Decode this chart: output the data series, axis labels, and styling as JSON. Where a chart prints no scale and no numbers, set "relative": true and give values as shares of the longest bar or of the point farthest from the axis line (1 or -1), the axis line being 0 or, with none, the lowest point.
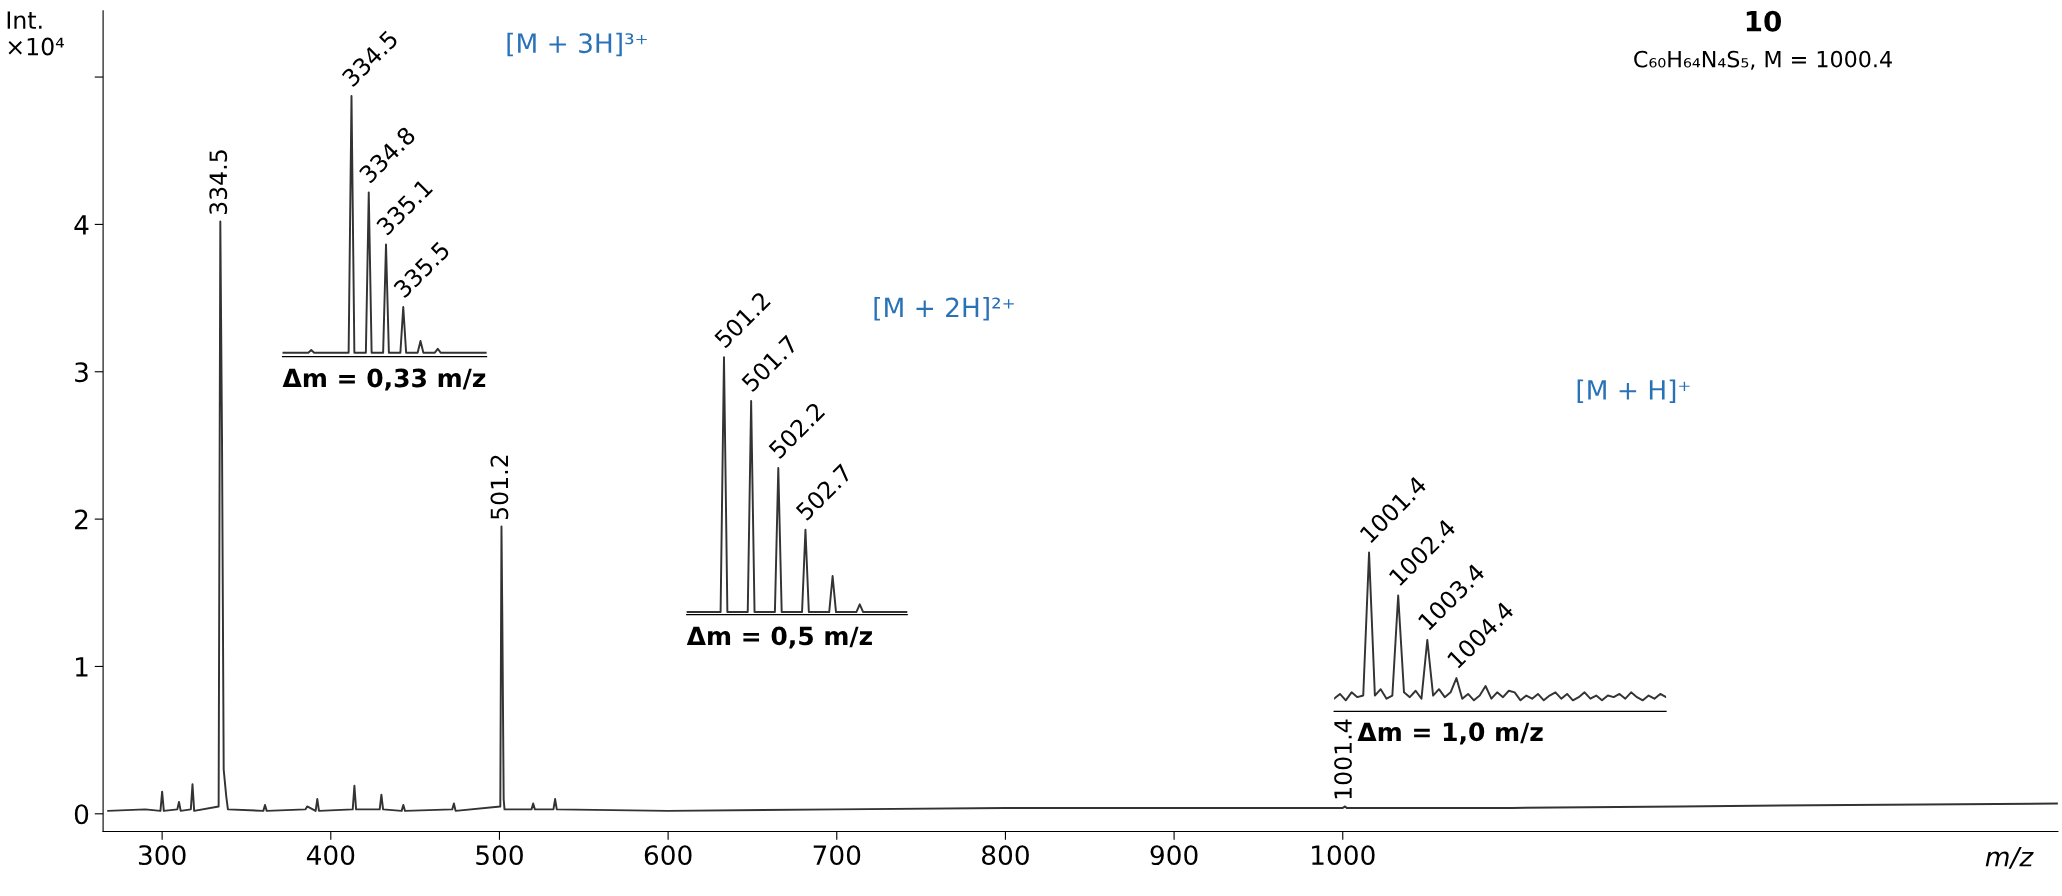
{
  "chart_data": [
    {
      "type": "line",
      "title": "10",
      "subtitle": "C₆₀H₆₄N₄S₅, M = 1000.4",
      "ylabel": "Int.\n×10⁴",
      "xlabel": "m/z",
      "xlim": [
        265,
        1424
      ],
      "ylim": [
        -0.12,
        5.45
      ],
      "xticks": [
        300,
        400,
        500,
        600,
        700,
        800,
        900,
        1000
      ],
      "yticks": [
        0,
        1,
        2,
        3,
        4,
        {
          "value": 5,
          "label": null
        }
      ],
      "series": [
        {
          "color": "#333333",
          "x": [
            268,
            290,
            299,
            300,
            301,
            309,
            310,
            311,
            317,
            318,
            319,
            333.5,
            334.5,
            335.5,
            336.5,
            338,
            339,
            360,
            361,
            362,
            385,
            386,
            391,
            392,
            393,
            413,
            414,
            415,
            429,
            430,
            431,
            442,
            443,
            444,
            472,
            473,
            474,
            500.5,
            501.2,
            501.7,
            502.5,
            503,
            519,
            520,
            521,
            532,
            533,
            534,
            600,
            700,
            800,
            850,
            1000,
            1001.4,
            1002.4,
            1100,
            1200,
            1300,
            1424
          ],
          "values": [
            0.02,
            0.03,
            0.02,
            0.15,
            0.02,
            0.03,
            0.08,
            0.02,
            0.03,
            0.2,
            0.02,
            0.05,
            4.02,
            2.55,
            0.3,
            0.12,
            0.03,
            0.02,
            0.06,
            0.02,
            0.03,
            0.05,
            0.02,
            0.1,
            0.02,
            0.03,
            0.19,
            0.03,
            0.03,
            0.13,
            0.03,
            0.02,
            0.06,
            0.02,
            0.03,
            0.07,
            0.02,
            0.05,
            1.95,
            1.32,
            0.1,
            0.03,
            0.03,
            0.07,
            0.03,
            0.03,
            0.1,
            0.03,
            0.02,
            0.03,
            0.04,
            0.04,
            0.04,
            0.05,
            0.04,
            0.04,
            0.05,
            0.06,
            0.07
          ]
        }
      ],
      "annotations": [
        {
          "text": "334.5",
          "x": 334.5,
          "y": 4.02
        },
        {
          "text": "501.2",
          "x": 501.2,
          "y": 1.95
        },
        {
          "text": "1001.4",
          "x": 1001.4,
          "y": 0.05
        },
        "[M + 3H]³⁺",
        "[M + 2H]²⁺",
        "[M + H]⁺"
      ]
    },
    {
      "type": "line",
      "relative": true,
      "tick_labels": false,
      "xlabel": "Δm = 0,33 m/z",
      "categories": [
        null,
        null,
        null,
        null,
        null,
        null,
        null,
        null,
        null,
        null,
        null,
        null,
        null,
        null,
        null,
        null,
        null,
        null,
        null,
        null,
        null,
        null,
        null,
        null,
        null,
        null,
        null,
        null,
        null,
        null,
        null,
        null,
        null,
        null,
        null,
        null,
        null,
        null,
        null,
        null,
        null,
        null,
        null,
        null,
        null,
        null,
        null,
        null,
        null,
        null,
        null,
        null,
        null,
        null,
        null,
        null,
        null,
        null,
        null,
        null,
        null,
        null,
        null,
        null,
        null,
        null,
        null,
        null,
        null,
        null,
        null,
        null
      ],
      "series": [
        {
          "color": "#333333",
          "values": [
            0.015,
            0.015,
            0.015,
            0.015,
            0.015,
            0.015,
            0.015,
            0.015,
            0.015,
            0.015,
            0.025,
            0.015,
            0.015,
            0.015,
            0.015,
            0.015,
            0.015,
            0.015,
            0.015,
            0.015,
            0.015,
            0.015,
            0.015,
            0.015,
            1,
            0.015,
            0.015,
            0.015,
            0.015,
            0.015,
            0.63,
            0.015,
            0.015,
            0.015,
            0.015,
            0.015,
            0.43,
            0.015,
            0.015,
            0.015,
            0.015,
            0.015,
            0.19,
            0.015,
            0.015,
            0.015,
            0.015,
            0.015,
            0.06,
            0.015,
            0.015,
            0.015,
            0.015,
            0.015,
            0.03,
            0.015,
            0.015,
            0.015,
            0.015,
            0.015,
            0.015,
            0.015,
            0.015,
            0.015,
            0.015,
            0.015,
            0.015,
            0.015,
            0.015,
            0.015,
            0.015,
            0.015
          ]
        }
      ],
      "annotations": [
        "334.5",
        "334.8",
        "335.1",
        "335.5"
      ]
    },
    {
      "type": "line",
      "relative": true,
      "tick_labels": false,
      "xlabel": "Δm = 0,5 m/z",
      "categories": [
        null,
        null,
        null,
        null,
        null,
        null,
        null,
        null,
        null,
        null,
        null,
        null,
        null,
        null,
        null,
        null,
        null,
        null,
        null,
        null,
        null,
        null,
        null,
        null,
        null,
        null,
        null,
        null,
        null,
        null,
        null,
        null,
        null,
        null,
        null,
        null,
        null,
        null,
        null,
        null,
        null,
        null,
        null,
        null,
        null,
        null,
        null,
        null,
        null,
        null,
        null,
        null,
        null,
        null,
        null,
        null,
        null,
        null,
        null,
        null,
        null,
        null,
        null,
        null,
        null,
        null
      ],
      "series": [
        {
          "color": "#333333",
          "values": [
            0.01,
            0.01,
            0.01,
            0.01,
            0.01,
            0.01,
            0.01,
            0.01,
            0.01,
            0.01,
            0.01,
            1,
            0.01,
            0.01,
            0.01,
            0.01,
            0.01,
            0.01,
            0.01,
            0.83,
            0.01,
            0.01,
            0.01,
            0.01,
            0.01,
            0.01,
            0.01,
            0.57,
            0.01,
            0.01,
            0.01,
            0.01,
            0.01,
            0.01,
            0.01,
            0.33,
            0.01,
            0.01,
            0.01,
            0.01,
            0.01,
            0.01,
            0.01,
            0.15,
            0.01,
            0.01,
            0.01,
            0.01,
            0.01,
            0.01,
            0.01,
            0.04,
            0.01,
            0.01,
            0.01,
            0.01,
            0.01,
            0.01,
            0.01,
            0.01,
            0.01,
            0.01,
            0.01,
            0.01,
            0.01,
            0.01
          ]
        }
      ],
      "annotations": [
        "501.2",
        "501.7",
        "502.2",
        "502.7"
      ]
    },
    {
      "type": "line",
      "relative": true,
      "tick_labels": false,
      "xlabel": "Δm = 1,0 m/z",
      "categories": [
        null,
        null,
        null,
        null,
        null,
        null,
        null,
        null,
        null,
        null,
        null,
        null,
        null,
        null,
        null,
        null,
        null,
        null,
        null,
        null,
        null,
        null,
        null,
        null,
        null,
        null,
        null,
        null,
        null,
        null,
        null,
        null,
        null,
        null,
        null,
        null,
        null,
        null,
        null,
        null,
        null,
        null,
        null,
        null,
        null,
        null,
        null,
        null,
        null,
        null,
        null,
        null,
        null,
        null,
        null,
        null,
        null,
        null
      ],
      "series": [
        {
          "color": "#333333",
          "values": [
            0.08,
            0.11,
            0.07,
            0.12,
            0.09,
            0.1,
            1,
            0.1,
            0.14,
            0.08,
            0.1,
            0.73,
            0.12,
            0.09,
            0.13,
            0.08,
            0.45,
            0.1,
            0.14,
            0.09,
            0.12,
            0.21,
            0.08,
            0.11,
            0.07,
            0.1,
            0.16,
            0.08,
            0.12,
            0.09,
            0.13,
            0.12,
            0.07,
            0.1,
            0.08,
            0.11,
            0.07,
            0.1,
            0.12,
            0.08,
            0.11,
            0.07,
            0.09,
            0.12,
            0.08,
            0.1,
            0.07,
            0.1,
            0.09,
            0.11,
            0.08,
            0.12,
            0.09,
            0.07,
            0.1,
            0.08,
            0.11,
            0.09
          ]
        }
      ],
      "annotations": [
        "1001.4",
        "1002.4",
        "1003.4",
        "1004.4"
      ]
    }
  ]
}
